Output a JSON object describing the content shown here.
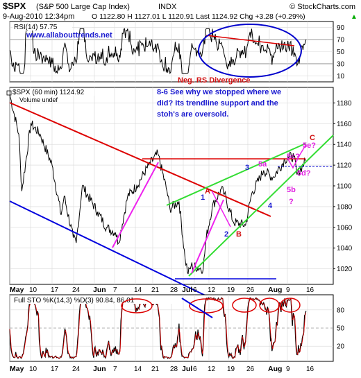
{
  "header": {
    "symbol": "$SPX",
    "name": "(S&P 500 Large Cap Index)",
    "exchange": "INDX",
    "source": "© StockCharts.com",
    "date": "9-Aug-2010 12:34pm",
    "quote": "O 1122.80  H 1127.01  L 1120.91  Last 1124.92  Chg +3.28 (+0.29%)",
    "quote_arrow": "▲"
  },
  "rsi_panel": {
    "label": "RSI(14) 57.75",
    "website": "www.allabouttrends.net",
    "divergence_note": "Neg. RS Divergence",
    "ticks": [
      90,
      70,
      50,
      30,
      10
    ],
    "overbought": 70,
    "oversold": 30
  },
  "price_panel": {
    "legend_label": "$SPX (60 min) 1124.92",
    "volume_label": "Volume undef",
    "commentary": [
      "8-6 See why we stopped where we",
      "did? Its trendline support and the",
      "stoh's are oversold."
    ],
    "ticks": [
      1180,
      1160,
      1140,
      1120,
      1100,
      1080,
      1060,
      1040,
      1020
    ]
  },
  "sto_panel": {
    "label": "Full STO %K(14,3) %D(3) 90.84, 86.01",
    "ticks": [
      80,
      50,
      20
    ]
  },
  "x_axis": {
    "labels": [
      "May",
      "10",
      "17",
      "24",
      "Jun",
      "7",
      "14",
      "21",
      "28",
      "Jul",
      "6",
      "12",
      "19",
      "26",
      "Aug",
      "9",
      "16"
    ]
  },
  "wave_labels": {
    "blue": [
      "1",
      "3",
      "4",
      "5a",
      "5c?"
    ],
    "red": [
      "A",
      "B",
      "C"
    ],
    "magenta": [
      "2",
      "5b",
      "?",
      "5d?",
      "5e?"
    ]
  },
  "colors": {
    "price": "#000000",
    "indicator": "#000000",
    "resistance": "#dd0000",
    "support_channel": "#0000dd",
    "wedge": "#33dd33",
    "wave_leg": "#ee22ee",
    "ellipse_rsi": "#0000cc",
    "ellipse_sto": "#dd0000",
    "dashed_level": "#0000cc"
  },
  "chart_data": {
    "type": "line",
    "xlabel": "",
    "ylabel": "",
    "ylim": [
      1005,
      1195
    ],
    "x_range": [
      "2010-05-03",
      "2010-08-18"
    ],
    "series": [
      {
        "x": [
          "2010-05-03",
          "2010-05-06",
          "2010-05-07",
          "2010-05-10",
          "2010-05-13",
          "2010-05-17",
          "2010-05-20",
          "2010-05-21",
          "2010-05-24",
          "2010-05-25",
          "2010-05-27",
          "2010-06-01",
          "2010-06-04",
          "2010-06-07",
          "2010-06-08",
          "2010-06-11",
          "2010-06-14",
          "2010-06-18",
          "2010-06-21",
          "2010-06-24",
          "2010-06-25",
          "2010-06-28",
          "2010-06-30",
          "2010-07-01",
          "2010-07-02",
          "2010-07-06",
          "2010-07-07",
          "2010-07-09",
          "2010-07-12",
          "2010-07-13",
          "2010-07-16",
          "2010-07-20",
          "2010-07-22",
          "2010-07-26",
          "2010-07-29",
          "2010-08-02",
          "2010-08-03",
          "2010-08-05",
          "2010-08-06",
          "2010-08-09"
        ],
        "values": [
          1188,
          1150,
          1095,
          1160,
          1150,
          1120,
          1072,
          1090,
          1050,
          1045,
          1100,
          1075,
          1060,
          1055,
          1045,
          1090,
          1100,
          1120,
          1131,
          1095,
          1078,
          1085,
          1030,
          1015,
          1023,
          1020,
          1050,
          1080,
          1097,
          1092,
          1065,
          1062,
          1092,
          1115,
          1108,
          1125,
          1128,
          1128,
          1111,
          1124.92
        ]
      }
    ]
  }
}
